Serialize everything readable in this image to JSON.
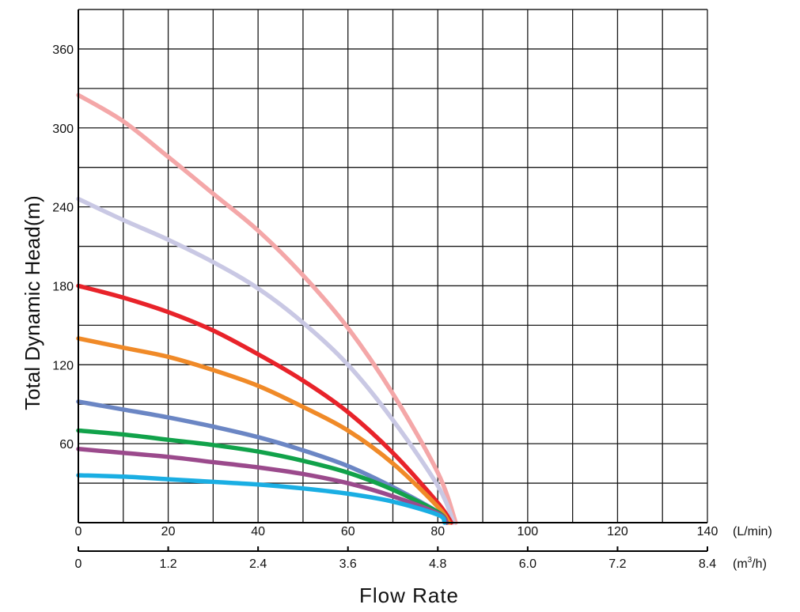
{
  "chart_data": {
    "type": "line",
    "title": "",
    "xlabel": "Flow Rate",
    "ylabel": "Total Dynamic Head(m)",
    "xlim": [
      0,
      140
    ],
    "ylim": [
      0,
      390
    ],
    "grid": true,
    "x_axis_primary": {
      "ticks": [
        0,
        20,
        40,
        60,
        80,
        100,
        120,
        140
      ],
      "labels": [
        "0",
        "20",
        "40",
        "60",
        "80",
        "100",
        "120",
        "140"
      ],
      "unit": "(L/min)"
    },
    "x_axis_secondary": {
      "labels": [
        "0",
        "1.2",
        "2.4",
        "3.6",
        "4.8",
        "6.0",
        "7.2",
        "8.4"
      ],
      "unit_prefix": "(m",
      "unit_sup": "3",
      "unit_suffix": "/h)"
    },
    "y_axis": {
      "ticks": [
        60,
        120,
        180,
        240,
        300,
        360
      ],
      "labels": [
        "60",
        "120",
        "180",
        "240",
        "300",
        "360"
      ]
    },
    "series": [
      {
        "color": "#f4a7a8",
        "points": [
          [
            0,
            325
          ],
          [
            10,
            305
          ],
          [
            20,
            278
          ],
          [
            30,
            250
          ],
          [
            40,
            222
          ],
          [
            50,
            188
          ],
          [
            60,
            148
          ],
          [
            70,
            98
          ],
          [
            80,
            38
          ],
          [
            84,
            0
          ]
        ]
      },
      {
        "color": "#c9c8e4",
        "points": [
          [
            0,
            246
          ],
          [
            10,
            230
          ],
          [
            20,
            215
          ],
          [
            30,
            198
          ],
          [
            40,
            178
          ],
          [
            50,
            152
          ],
          [
            60,
            120
          ],
          [
            70,
            78
          ],
          [
            80,
            28
          ],
          [
            83.5,
            0
          ]
        ]
      },
      {
        "color": "#e8232a",
        "points": [
          [
            0,
            180
          ],
          [
            10,
            171
          ],
          [
            20,
            160
          ],
          [
            30,
            146
          ],
          [
            40,
            128
          ],
          [
            50,
            108
          ],
          [
            60,
            84
          ],
          [
            70,
            53
          ],
          [
            80,
            15
          ],
          [
            83,
            0
          ]
        ]
      },
      {
        "color": "#f08a28",
        "points": [
          [
            0,
            140
          ],
          [
            10,
            133
          ],
          [
            20,
            126
          ],
          [
            30,
            116
          ],
          [
            40,
            104
          ],
          [
            50,
            88
          ],
          [
            60,
            70
          ],
          [
            70,
            45
          ],
          [
            80,
            12
          ],
          [
            82.5,
            0
          ]
        ]
      },
      {
        "color": "#6b86c4",
        "points": [
          [
            0,
            92
          ],
          [
            10,
            86
          ],
          [
            20,
            80
          ],
          [
            30,
            73
          ],
          [
            40,
            65
          ],
          [
            50,
            55
          ],
          [
            60,
            43
          ],
          [
            70,
            27
          ],
          [
            80,
            8
          ],
          [
            82,
            0
          ]
        ]
      },
      {
        "color": "#11a24a",
        "points": [
          [
            0,
            70
          ],
          [
            10,
            67
          ],
          [
            20,
            63
          ],
          [
            30,
            59
          ],
          [
            40,
            54
          ],
          [
            50,
            47
          ],
          [
            60,
            38
          ],
          [
            70,
            25
          ],
          [
            80,
            8
          ],
          [
            82,
            0
          ]
        ]
      },
      {
        "color": "#9b4a8c",
        "points": [
          [
            0,
            56
          ],
          [
            10,
            53
          ],
          [
            20,
            50
          ],
          [
            30,
            46
          ],
          [
            40,
            42
          ],
          [
            50,
            37
          ],
          [
            60,
            30
          ],
          [
            70,
            20
          ],
          [
            80,
            7
          ],
          [
            82,
            0
          ]
        ]
      },
      {
        "color": "#1aaee3",
        "points": [
          [
            0,
            36
          ],
          [
            10,
            35
          ],
          [
            20,
            33
          ],
          [
            30,
            31
          ],
          [
            40,
            29
          ],
          [
            50,
            26
          ],
          [
            60,
            22
          ],
          [
            70,
            16
          ],
          [
            80,
            6
          ],
          [
            81.5,
            0
          ]
        ]
      }
    ]
  }
}
